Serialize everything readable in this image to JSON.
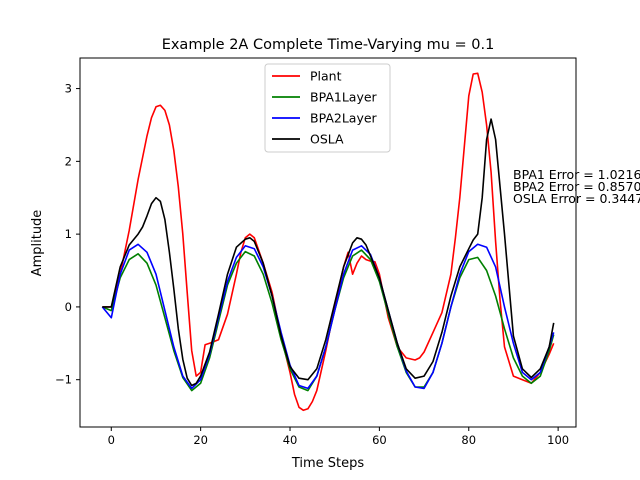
{
  "chart_data": {
    "type": "line",
    "title": "Example 2A Complete Time-Varying mu = 0.1",
    "xlabel": "Time Steps",
    "ylabel": "Amplitude",
    "xlim": [
      -7,
      104
    ],
    "ylim": [
      -1.65,
      3.42
    ],
    "xticks": [
      0,
      20,
      40,
      60,
      80,
      100
    ],
    "yticks": [
      -1,
      0,
      1,
      2,
      3
    ],
    "grid": false,
    "legend_position": "upper center",
    "series": [
      {
        "name": "Plant",
        "color": "#ff0000",
        "x": [
          -2,
          0,
          2,
          4,
          6,
          8,
          9,
          10,
          11,
          12,
          13,
          14,
          15,
          16,
          17,
          18,
          19,
          20,
          21,
          22,
          24,
          26,
          28,
          29,
          30,
          31,
          32,
          34,
          36,
          38,
          40,
          41,
          42,
          43,
          44,
          45,
          46,
          48,
          50,
          52,
          53,
          54,
          55,
          56,
          57,
          58,
          59,
          60,
          62,
          64,
          66,
          68,
          69,
          70,
          72,
          74,
          76,
          77,
          78,
          79,
          80,
          81,
          82,
          83,
          84,
          85,
          86,
          87,
          88,
          90,
          92,
          94,
          96,
          98,
          99
        ],
        "y": [
          0,
          0,
          0.45,
          1.05,
          1.75,
          2.35,
          2.6,
          2.75,
          2.77,
          2.7,
          2.5,
          2.15,
          1.65,
          1.0,
          0.2,
          -0.6,
          -0.95,
          -0.9,
          -0.52,
          -0.5,
          -0.45,
          -0.1,
          0.45,
          0.75,
          0.95,
          1.0,
          0.95,
          0.6,
          0.2,
          -0.4,
          -0.9,
          -1.2,
          -1.38,
          -1.42,
          -1.4,
          -1.3,
          -1.15,
          -0.6,
          0.0,
          0.55,
          0.75,
          0.45,
          0.6,
          0.7,
          0.65,
          0.63,
          0.62,
          0.45,
          -0.15,
          -0.55,
          -0.7,
          -0.73,
          -0.7,
          -0.62,
          -0.35,
          -0.08,
          0.45,
          0.95,
          1.5,
          2.2,
          2.9,
          3.2,
          3.21,
          2.95,
          2.5,
          1.85,
          0.9,
          0.1,
          -0.55,
          -0.95,
          -1.0,
          -1.05,
          -0.9,
          -0.65,
          -0.5
        ]
      },
      {
        "name": "BPA1Layer",
        "color": "#008000",
        "x": [
          -2,
          0,
          2,
          4,
          6,
          8,
          10,
          12,
          14,
          16,
          18,
          20,
          22,
          24,
          26,
          28,
          30,
          32,
          34,
          36,
          38,
          40,
          42,
          44,
          46,
          48,
          50,
          52,
          54,
          56,
          58,
          60,
          62,
          64,
          66,
          68,
          70,
          72,
          74,
          76,
          78,
          80,
          82,
          84,
          86,
          88,
          90,
          92,
          94,
          96,
          98,
          99
        ],
        "y": [
          0,
          -0.05,
          0.4,
          0.65,
          0.73,
          0.6,
          0.3,
          -0.15,
          -0.6,
          -0.97,
          -1.15,
          -1.05,
          -0.7,
          -0.2,
          0.3,
          0.6,
          0.76,
          0.7,
          0.45,
          0.05,
          -0.45,
          -0.85,
          -1.1,
          -1.15,
          -0.95,
          -0.55,
          -0.05,
          0.4,
          0.7,
          0.78,
          0.65,
          0.35,
          -0.1,
          -0.55,
          -0.9,
          -1.1,
          -1.1,
          -0.9,
          -0.5,
          0.0,
          0.4,
          0.65,
          0.68,
          0.5,
          0.15,
          -0.3,
          -0.7,
          -0.95,
          -1.05,
          -0.95,
          -0.6,
          -0.38
        ]
      },
      {
        "name": "BPA2Layer",
        "color": "#0000ff",
        "x": [
          -2,
          0,
          2,
          4,
          6,
          8,
          10,
          12,
          14,
          16,
          18,
          20,
          22,
          24,
          26,
          28,
          30,
          32,
          34,
          36,
          38,
          40,
          42,
          44,
          46,
          48,
          50,
          52,
          54,
          56,
          58,
          60,
          62,
          64,
          66,
          68,
          70,
          72,
          74,
          76,
          78,
          80,
          82,
          84,
          86,
          88,
          90,
          92,
          94,
          96,
          98,
          99
        ],
        "y": [
          0,
          -0.15,
          0.45,
          0.78,
          0.86,
          0.75,
          0.45,
          -0.05,
          -0.55,
          -0.95,
          -1.12,
          -1.0,
          -0.65,
          -0.15,
          0.35,
          0.68,
          0.84,
          0.8,
          0.55,
          0.15,
          -0.35,
          -0.8,
          -1.08,
          -1.12,
          -0.95,
          -0.55,
          -0.05,
          0.45,
          0.78,
          0.84,
          0.72,
          0.4,
          -0.05,
          -0.5,
          -0.88,
          -1.1,
          -1.12,
          -0.9,
          -0.5,
          0.0,
          0.45,
          0.76,
          0.86,
          0.82,
          0.55,
          0.0,
          -0.5,
          -0.9,
          -1.0,
          -0.9,
          -0.55,
          -0.35
        ]
      },
      {
        "name": "OSLA",
        "color": "#000000",
        "x": [
          -2,
          0,
          2,
          4,
          6,
          7,
          8,
          9,
          10,
          11,
          12,
          13,
          14,
          15,
          16,
          17,
          18,
          19,
          20,
          22,
          24,
          26,
          28,
          30,
          31,
          32,
          34,
          36,
          38,
          40,
          42,
          44,
          46,
          48,
          50,
          52,
          54,
          55,
          56,
          57,
          58,
          60,
          62,
          64,
          66,
          68,
          70,
          72,
          74,
          76,
          78,
          80,
          81,
          82,
          83,
          84,
          85,
          86,
          88,
          90,
          92,
          94,
          96,
          98,
          99
        ],
        "y": [
          0,
          0,
          0.55,
          0.85,
          1.0,
          1.1,
          1.25,
          1.42,
          1.5,
          1.45,
          1.2,
          0.75,
          0.25,
          -0.3,
          -0.72,
          -0.98,
          -1.08,
          -1.05,
          -0.95,
          -0.62,
          -0.1,
          0.45,
          0.82,
          0.93,
          0.95,
          0.9,
          0.6,
          0.15,
          -0.4,
          -0.82,
          -0.98,
          -1.0,
          -0.85,
          -0.45,
          0.05,
          0.55,
          0.88,
          0.95,
          0.93,
          0.85,
          0.7,
          0.4,
          -0.05,
          -0.5,
          -0.85,
          -0.98,
          -0.95,
          -0.75,
          -0.35,
          0.15,
          0.55,
          0.8,
          0.92,
          1.0,
          1.5,
          2.3,
          2.58,
          2.3,
          1.0,
          -0.4,
          -0.85,
          -0.97,
          -0.85,
          -0.55,
          -0.22
        ]
      }
    ],
    "annotations": [
      "BPA1 Error = 1.0216",
      "BPA2 Error = 0.8570",
      "OSLA Error = 0.3447"
    ]
  }
}
